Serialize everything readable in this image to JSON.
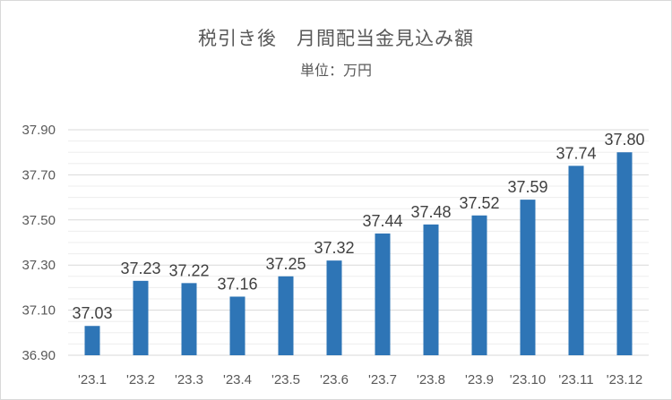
{
  "chart_data": {
    "type": "bar",
    "title": "税引き後　月間配当金見込み額",
    "subtitle": "単位：万円",
    "xlabel": "",
    "ylabel": "",
    "categories": [
      "'23.1",
      "'23.2",
      "'23.3",
      "'23.4",
      "'23.5",
      "'23.6",
      "'23.7",
      "'23.8",
      "'23.9",
      "'23.10",
      "'23.11",
      "'23.12"
    ],
    "values": [
      37.03,
      37.23,
      37.22,
      37.16,
      37.25,
      37.32,
      37.44,
      37.48,
      37.52,
      37.59,
      37.74,
      37.8
    ],
    "data_labels": [
      "37.03",
      "37.23",
      "37.22",
      "37.16",
      "37.25",
      "37.32",
      "37.44",
      "37.48",
      "37.52",
      "37.59",
      "37.74",
      "37.80"
    ],
    "ylim": [
      36.9,
      37.9
    ],
    "yticks": [
      "36.90",
      "37.10",
      "37.30",
      "37.50",
      "37.70",
      "37.90"
    ],
    "grid": true,
    "legend": "none",
    "bar_color": "#2e75b6"
  }
}
